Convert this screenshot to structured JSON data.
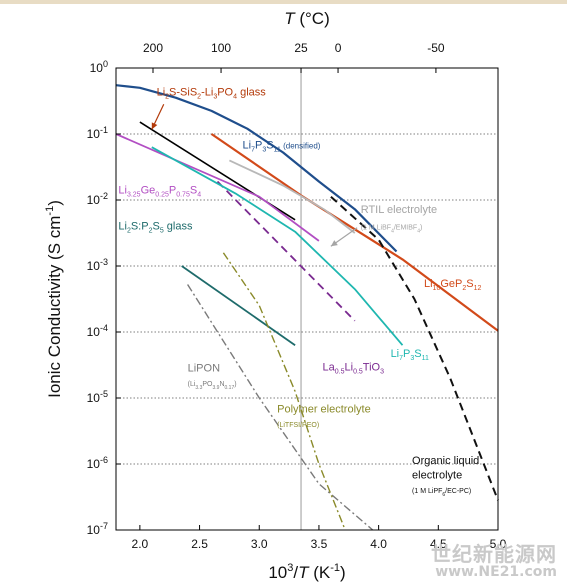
{
  "chart_data": {
    "type": "line",
    "ylabel": "Ionic Conductivity (S cm⁻¹)",
    "xlabel_bottom": "10³/T (K⁻¹)",
    "xlabel_top": "T (°C)",
    "xlim": [
      1.8,
      5.0
    ],
    "ylim_log10": [
      -7,
      0
    ],
    "y_scale": "log",
    "grid": "horizontal dotted",
    "x_ticks": [
      "2.0",
      "2.5",
      "3.0",
      "3.5",
      "4.0",
      "4.5",
      "5.0"
    ],
    "y_ticks": [
      {
        "base": "10",
        "exp": "0",
        "log": 0
      },
      {
        "base": "10",
        "exp": "-1",
        "log": -1
      },
      {
        "base": "10",
        "exp": "-2",
        "log": -2
      },
      {
        "base": "10",
        "exp": "-3",
        "log": -3
      },
      {
        "base": "10",
        "exp": "-4",
        "log": -4
      },
      {
        "base": "10",
        "exp": "-5",
        "log": -5
      },
      {
        "base": "10",
        "exp": "-6",
        "log": -6
      },
      {
        "base": "10",
        "exp": "-7",
        "log": -7
      }
    ],
    "top_ticks": [
      {
        "label": "200",
        "x": 2.11
      },
      {
        "label": "100",
        "x": 2.68
      },
      {
        "label": "25",
        "x": 3.35
      },
      {
        "label": "0",
        "x": 3.66
      },
      {
        "label": "-50",
        "x": 4.48
      }
    ],
    "reference_line": {
      "x": 3.35,
      "color": "#9a9a9a"
    },
    "series": [
      {
        "name": "Li2S-SiS2-Li3PO4 glass",
        "color": "#000000",
        "dash": "solid",
        "width": 1.6,
        "points": [
          [
            2.0,
            -0.82
          ],
          [
            3.3,
            -2.3
          ]
        ]
      },
      {
        "name": "Li7P3S11 (densified)",
        "color": "#1f4e8c",
        "dash": "solid",
        "width": 2.2,
        "points": [
          [
            1.8,
            -0.26
          ],
          [
            2.0,
            -0.3
          ],
          [
            2.3,
            -0.45
          ],
          [
            2.6,
            -0.65
          ],
          [
            2.9,
            -0.92
          ],
          [
            3.2,
            -1.28
          ],
          [
            3.5,
            -1.72
          ],
          [
            3.8,
            -2.14
          ],
          [
            4.15,
            -2.78
          ]
        ]
      },
      {
        "name": "Li10GeP2S12",
        "color": "#d24a1a",
        "dash": "solid",
        "width": 2.2,
        "points": [
          [
            2.6,
            -1.0
          ],
          [
            3.35,
            -1.93
          ],
          [
            4.2,
            -2.9
          ],
          [
            5.0,
            -3.98
          ]
        ]
      },
      {
        "name": "RTIL electrolyte",
        "color": "#b8b8b8",
        "dash": "solid",
        "width": 1.8,
        "points": [
          [
            2.75,
            -1.4
          ],
          [
            3.2,
            -1.78
          ],
          [
            3.55,
            -2.15
          ],
          [
            3.8,
            -2.5
          ]
        ]
      },
      {
        "name": "Li3.25Ge0.25P0.75S4",
        "color": "#b24ec3",
        "dash": "solid",
        "width": 1.8,
        "points": [
          [
            1.8,
            -1.0
          ],
          [
            3.0,
            -1.95
          ],
          [
            3.5,
            -2.62
          ]
        ]
      },
      {
        "name": "La0.5Li0.5TiO3",
        "color": "#7a2a90",
        "dash": "8,5",
        "width": 1.8,
        "points": [
          [
            2.65,
            -1.72
          ],
          [
            3.8,
            -3.83
          ]
        ]
      },
      {
        "name": "Li7P3S11",
        "color": "#1fb7b0",
        "dash": "solid",
        "width": 1.8,
        "points": [
          [
            2.1,
            -1.2
          ],
          [
            2.8,
            -1.9
          ],
          [
            3.3,
            -2.48
          ],
          [
            3.8,
            -3.35
          ],
          [
            4.2,
            -4.2
          ]
        ]
      },
      {
        "name": "Li2S:P2S5 glass",
        "color": "#1e6b6b",
        "dash": "solid",
        "width": 1.8,
        "points": [
          [
            2.35,
            -3.0
          ],
          [
            3.3,
            -4.2
          ]
        ]
      },
      {
        "name": "LiPON",
        "color": "#7a7a7a",
        "dash": "8,3,2,3",
        "width": 1.4,
        "points": [
          [
            2.4,
            -3.28
          ],
          [
            3.0,
            -5.0
          ],
          [
            3.5,
            -6.3
          ],
          [
            3.95,
            -7.0
          ]
        ]
      },
      {
        "name": "Polymer electrolyte",
        "color": "#8a8a2a",
        "dash": "8,3,2,3",
        "width": 1.4,
        "points": [
          [
            2.7,
            -2.8
          ],
          [
            3.0,
            -3.6
          ],
          [
            3.3,
            -4.9
          ],
          [
            3.5,
            -6.0
          ],
          [
            3.72,
            -7.0
          ]
        ]
      },
      {
        "name": "Organic liquid electrolyte",
        "color": "#111111",
        "dash": "8,5",
        "width": 2.0,
        "points": [
          [
            3.6,
            -1.95
          ],
          [
            4.0,
            -2.6
          ],
          [
            4.3,
            -3.5
          ],
          [
            4.6,
            -4.7
          ],
          [
            5.0,
            -6.55
          ]
        ]
      }
    ],
    "annotations": [
      {
        "id": "li2s-sis2",
        "x": 2.14,
        "log": -0.42,
        "color": "#b33a0a",
        "size": 11,
        "parts": [
          [
            "Li",
            ""
          ],
          [
            "2",
            "sub"
          ],
          [
            "S-SiS",
            ""
          ],
          [
            "2",
            "sub"
          ],
          [
            "-Li",
            ""
          ],
          [
            "3",
            "sub"
          ],
          [
            "PO",
            ""
          ],
          [
            "4",
            "sub"
          ],
          [
            " glass",
            ""
          ]
        ]
      },
      {
        "id": "li7p3s11-densified",
        "x": 2.86,
        "log": -1.22,
        "color": "#1f4e8c",
        "size": 11,
        "parts": [
          [
            "Li",
            ""
          ],
          [
            "7",
            "sub"
          ],
          [
            "P",
            ""
          ],
          [
            "3",
            "sub"
          ],
          [
            "S",
            ""
          ],
          [
            "11",
            "sub"
          ],
          [
            " (densified)",
            "small"
          ]
        ]
      },
      {
        "id": "li3ge",
        "x": 1.82,
        "log": -1.9,
        "color": "#b24ec3",
        "size": 11,
        "parts": [
          [
            "Li",
            ""
          ],
          [
            "3.25",
            "sub"
          ],
          [
            "Ge",
            ""
          ],
          [
            "0.25",
            "sub"
          ],
          [
            "P",
            ""
          ],
          [
            "0.75",
            "sub"
          ],
          [
            "S",
            ""
          ],
          [
            "4",
            "sub"
          ]
        ]
      },
      {
        "id": "rtil",
        "x": 3.85,
        "log": -2.2,
        "color": "#a5a5a5",
        "size": 11,
        "parts": [
          [
            "RTIL electrolyte",
            ""
          ]
        ]
      },
      {
        "id": "rtil-sub",
        "x": 3.85,
        "log": -2.45,
        "color": "#a5a5a5",
        "size": 7,
        "parts": [
          [
            "(1 M LiBF",
            ""
          ],
          [
            "4",
            "sub"
          ],
          [
            "/EMIBF",
            ""
          ],
          [
            "4",
            "sub"
          ],
          [
            ")",
            ""
          ]
        ]
      },
      {
        "id": "li2s-p2s5",
        "x": 1.82,
        "log": -2.45,
        "color": "#1e6b6b",
        "size": 11,
        "parts": [
          [
            "Li",
            ""
          ],
          [
            "2",
            "sub"
          ],
          [
            "S:P",
            ""
          ],
          [
            "2",
            "sub"
          ],
          [
            "S",
            ""
          ],
          [
            "5",
            "sub"
          ],
          [
            " glass",
            ""
          ]
        ]
      },
      {
        "id": "li10gep2s12",
        "x": 4.38,
        "log": -3.32,
        "color": "#d24a1a",
        "size": 11,
        "parts": [
          [
            "Li",
            ""
          ],
          [
            "10",
            "sub"
          ],
          [
            "GeP",
            ""
          ],
          [
            "2",
            "sub"
          ],
          [
            "S",
            ""
          ],
          [
            "12",
            "sub"
          ]
        ]
      },
      {
        "id": "llto",
        "x": 3.53,
        "log": -4.58,
        "color": "#7a2a90",
        "size": 11,
        "parts": [
          [
            "La",
            ""
          ],
          [
            "0.5",
            "sub"
          ],
          [
            "Li",
            ""
          ],
          [
            "0.5",
            "sub"
          ],
          [
            "TiO",
            ""
          ],
          [
            "3",
            "sub"
          ]
        ]
      },
      {
        "id": "li7p3s11",
        "x": 4.1,
        "log": -4.38,
        "color": "#1fb7b0",
        "size": 11,
        "parts": [
          [
            "Li",
            ""
          ],
          [
            "7",
            "sub"
          ],
          [
            "P",
            ""
          ],
          [
            "3",
            "sub"
          ],
          [
            "S",
            ""
          ],
          [
            "11",
            "sub"
          ]
        ]
      },
      {
        "id": "lipon",
        "x": 2.4,
        "log": -4.6,
        "color": "#7a7a7a",
        "size": 11,
        "parts": [
          [
            "LiPON",
            ""
          ]
        ]
      },
      {
        "id": "lipon-sub",
        "x": 2.4,
        "log": -4.82,
        "color": "#7a7a7a",
        "size": 7,
        "parts": [
          [
            "(Li",
            ""
          ],
          [
            "3.3",
            "sub"
          ],
          [
            "PO",
            ""
          ],
          [
            "3.9",
            "sub"
          ],
          [
            "N",
            ""
          ],
          [
            "0.17",
            "sub"
          ],
          [
            ")",
            ""
          ]
        ]
      },
      {
        "id": "polymer",
        "x": 3.15,
        "log": -5.22,
        "color": "#8a8a2a",
        "size": 11,
        "parts": [
          [
            "Polymer electrolyte",
            ""
          ]
        ]
      },
      {
        "id": "polymer-sub",
        "x": 3.15,
        "log": -5.44,
        "color": "#8a8a2a",
        "size": 7,
        "parts": [
          [
            "(LiTFSI/PEO)",
            ""
          ]
        ]
      },
      {
        "id": "organic1",
        "x": 4.28,
        "log": -6.0,
        "color": "#111111",
        "size": 11,
        "parts": [
          [
            "Organic liquid",
            ""
          ]
        ]
      },
      {
        "id": "organic2",
        "x": 4.28,
        "log": -6.22,
        "color": "#111111",
        "size": 11,
        "parts": [
          [
            "electrolyte",
            ""
          ]
        ]
      },
      {
        "id": "organic-sub",
        "x": 4.28,
        "log": -6.44,
        "color": "#111111",
        "size": 7,
        "parts": [
          [
            "(1 M LiPF",
            ""
          ],
          [
            "6",
            "sub"
          ],
          [
            "/EC-PC)",
            ""
          ]
        ]
      }
    ],
    "arrows": [
      {
        "id": "arrow-li2s-sis2",
        "from": [
          2.2,
          -0.55
        ],
        "to": [
          2.1,
          -0.93
        ],
        "color": "#b33a0a"
      },
      {
        "id": "arrow-rtil",
        "from": [
          3.82,
          -2.42
        ],
        "to": [
          3.6,
          -2.7
        ],
        "color": "#a5a5a5"
      }
    ]
  },
  "watermark": {
    "line1": "世纪新能源网",
    "line2": "www.NE21.com"
  }
}
